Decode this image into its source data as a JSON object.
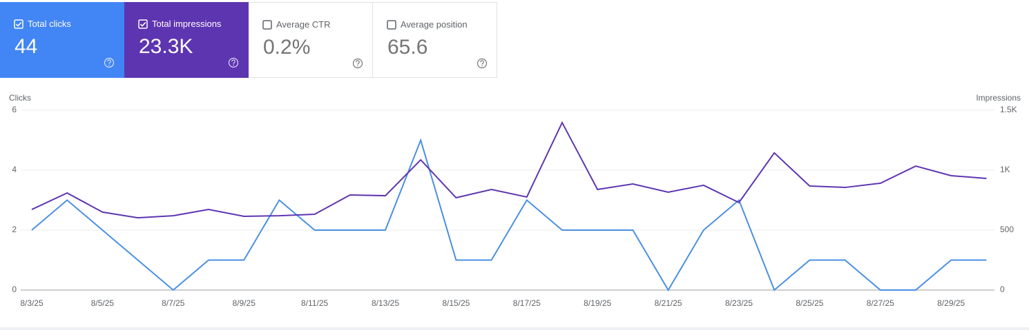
{
  "cards": [
    {
      "label": "Total clicks",
      "value": "44",
      "checked": true,
      "color": "#4285f4"
    },
    {
      "label": "Total impressions",
      "value": "23.3K",
      "checked": true,
      "color": "#5e35b1"
    },
    {
      "label": "Average CTR",
      "value": "0.2%",
      "checked": false,
      "color": "#ffffff"
    },
    {
      "label": "Average position",
      "value": "65.6",
      "checked": false,
      "color": "#ffffff"
    }
  ],
  "chart_data": {
    "type": "line",
    "y_label": "Clicks",
    "y2_label": "Impressions",
    "categories": [
      "8/3/25",
      null,
      "8/5/25",
      null,
      "8/7/25",
      null,
      "8/9/25",
      null,
      "8/11/25",
      null,
      "8/13/25",
      null,
      "8/15/25",
      null,
      "8/17/25",
      null,
      "8/19/25",
      null,
      "8/21/25",
      null,
      "8/23/25",
      null,
      "8/25/25",
      null,
      "8/27/25",
      null,
      "8/29/25",
      null
    ],
    "series": [
      {
        "name": "Clicks",
        "color": "#4a8fe2",
        "values": [
          2,
          3,
          2,
          1,
          0,
          1,
          1,
          3,
          2,
          2,
          2,
          5,
          1,
          1,
          3,
          2,
          2,
          2,
          0,
          2,
          3,
          0,
          1,
          1,
          0,
          0,
          1,
          1
        ]
      },
      {
        "name": "Impressions",
        "color": "#5e35b1",
        "axis": "y2",
        "values": [
          672,
          810,
          650,
          603,
          620,
          672,
          615,
          620,
          632,
          793,
          787,
          1086,
          770,
          839,
          776,
          1397,
          839,
          885,
          816,
          874,
          730,
          1144,
          868,
          856,
          891,
          1034,
          954,
          931
        ]
      }
    ],
    "ylim": [
      0,
      6
    ],
    "yticks": [
      0,
      2,
      4,
      6
    ],
    "y2lim": [
      0,
      1500
    ],
    "y2ticks": [
      0,
      500,
      {
        "value": 1000,
        "label": "1K"
      },
      {
        "value": 1500,
        "label": "1.5K"
      }
    ],
    "grid": true
  }
}
